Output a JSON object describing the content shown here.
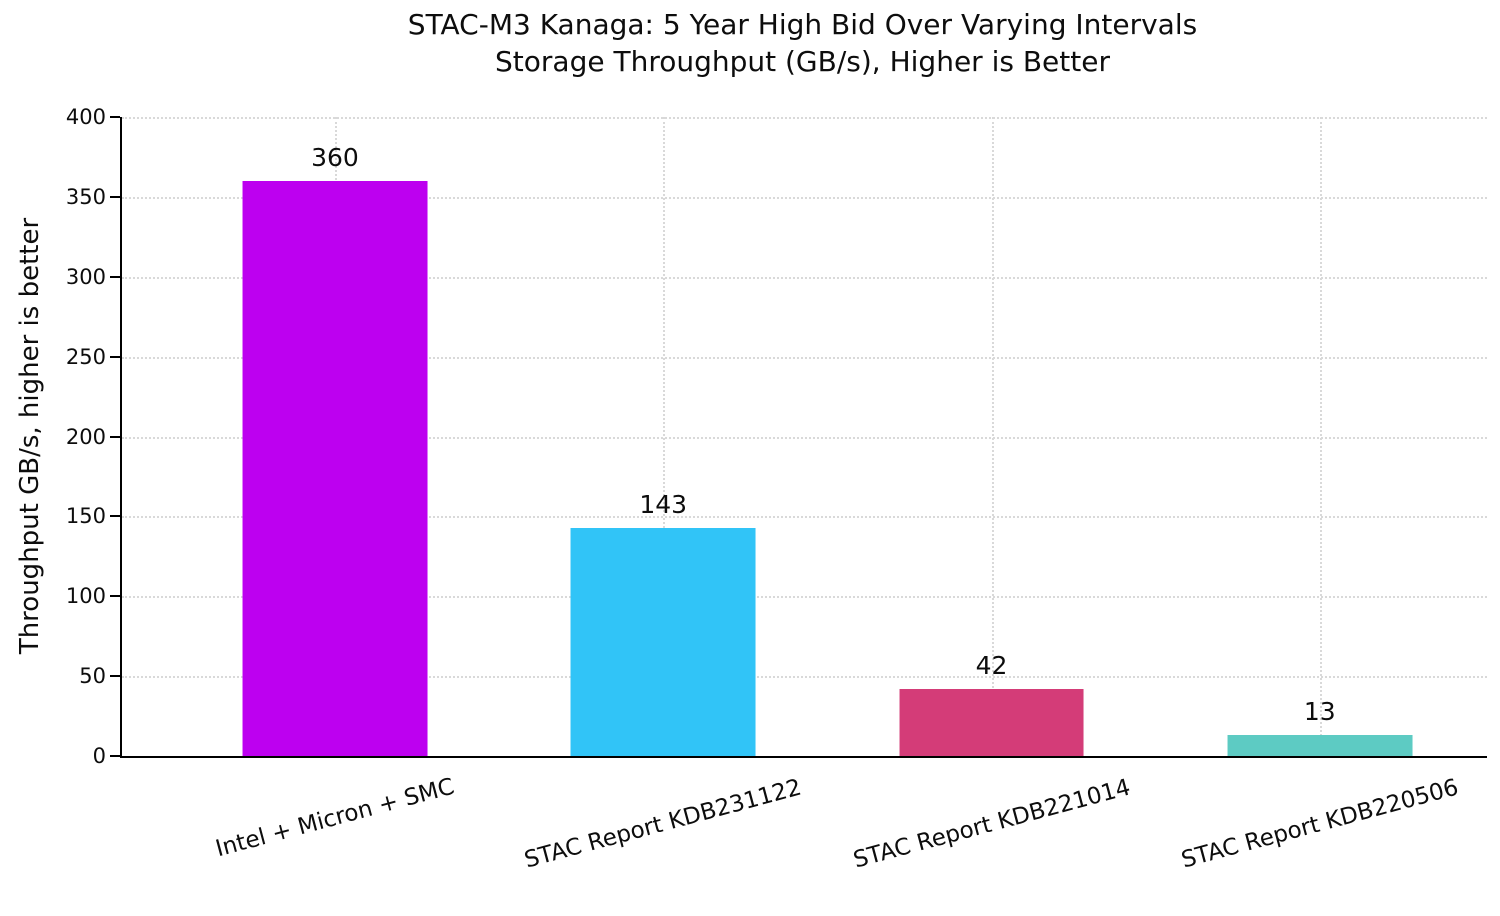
{
  "chart_data": {
    "type": "bar",
    "title": "STAC-M3 Kanaga: 5 Year High Bid Over Varying Intervals",
    "subtitle": "Storage Throughput (GB/s), Higher is Better",
    "ylabel": "Throughput GB/s, higher is better",
    "xlabel": "",
    "categories": [
      "Intel + Micron + SMC",
      "STAC Report KDB231122",
      "STAC Report KDB221014",
      "STAC Report KDB220506"
    ],
    "values": [
      360,
      143,
      42,
      13
    ],
    "value_labels": [
      "360",
      "143",
      "42",
      "13"
    ],
    "bar_colors": [
      "#bd00f0",
      "#31c4f7",
      "#d43c78",
      "#5dcbc3"
    ],
    "ylim": [
      0,
      400
    ],
    "yticks": [
      0,
      50,
      100,
      150,
      200,
      250,
      300,
      350,
      400
    ],
    "grid": "dotted horizontal at y ticks and vertical at category centers",
    "legend": "none",
    "xtick_rotation_deg": 15
  },
  "colors": {
    "background": "#ffffff",
    "grid": "#d9d9d9",
    "axis": "#000000",
    "text": "#0d0d0d"
  }
}
